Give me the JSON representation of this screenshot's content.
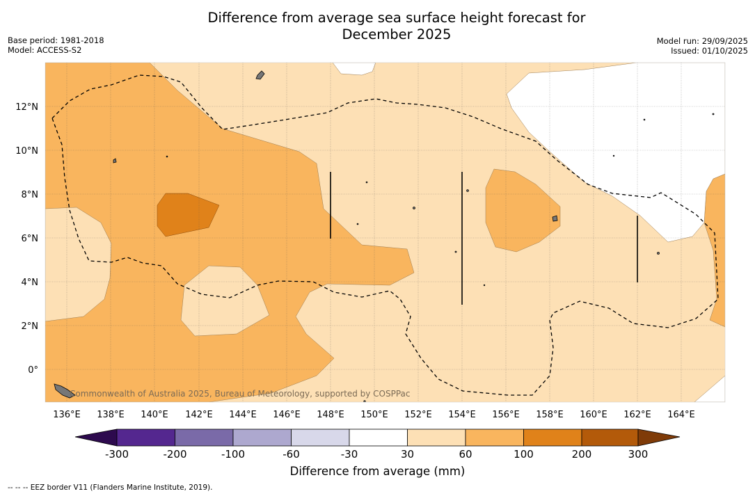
{
  "title": {
    "line1": "Difference from average sea surface height forecast for",
    "line2": "December 2025"
  },
  "meta_left": {
    "base_period": "Base period: 1981-2018",
    "model": "Model: ACCESS-S2"
  },
  "meta_right": {
    "model_run": "Model run: 29/09/2025",
    "issued": "Issued: 01/10/2025"
  },
  "map": {
    "lon_labels": [
      "136°E",
      "138°E",
      "140°E",
      "142°E",
      "144°E",
      "146°E",
      "148°E",
      "150°E",
      "152°E",
      "154°E",
      "156°E",
      "158°E",
      "160°E",
      "162°E",
      "164°E"
    ],
    "lat_labels": [
      "12°N",
      "10°N",
      "8°N",
      "6°N",
      "4°N",
      "2°N",
      "0°"
    ],
    "lon_range": [
      135,
      166
    ],
    "lat_range": [
      -1.5,
      13.9
    ],
    "credit": "Commonwealth of Australia 2025, Bureau of Meteorology, supported by COSPPac",
    "colors": {
      "band_30_60": "#fde0b5",
      "band_60_100": "#f9b55e",
      "band_100_200": "#e0821a",
      "white": "#ffffff",
      "land": "#777777"
    }
  },
  "colorbar": {
    "ticks": [
      "-300",
      "-200",
      "-100",
      "-60",
      "-30",
      "30",
      "60",
      "100",
      "200",
      "300"
    ],
    "colors": [
      "#2d0a4e",
      "#54278f",
      "#7a6aa8",
      "#ada8cf",
      "#d8d8ea",
      "#ffffff",
      "#fde0b5",
      "#f9b55e",
      "#e0821a",
      "#b35a0a",
      "#7f3b08"
    ],
    "label": "Difference from average (mm)"
  },
  "footnote": "--  --  -- EEZ border V11 (Flanders Marine Institute, 2019)."
}
